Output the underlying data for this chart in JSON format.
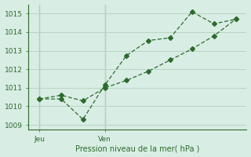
{
  "line1_x": [
    0,
    1,
    2,
    3,
    4,
    5,
    6,
    7,
    8,
    9
  ],
  "line1_y": [
    1010.4,
    1010.4,
    1009.3,
    1011.15,
    1012.75,
    1013.55,
    1013.7,
    1015.1,
    1014.45,
    1014.7
  ],
  "line2_x": [
    0,
    1,
    2,
    3,
    4,
    5,
    6,
    7,
    8,
    9
  ],
  "line2_y": [
    1010.4,
    1010.6,
    1010.3,
    1011.0,
    1011.4,
    1011.9,
    1012.5,
    1013.1,
    1013.8,
    1014.7
  ],
  "line_color": "#2d6a2d",
  "bg_color": "#d8ede4",
  "grid_color": "#b8d4c4",
  "xlabel": "Pression niveau de la mer( hPa )",
  "ylim": [
    1008.75,
    1015.5
  ],
  "xlim": [
    -0.5,
    9.5
  ],
  "yticks": [
    1009,
    1010,
    1011,
    1012,
    1013,
    1014,
    1015
  ],
  "xtick_positions": [
    0,
    3
  ],
  "xtick_labels": [
    "Jeu",
    "Ven"
  ],
  "vline_x": [
    0,
    3
  ],
  "marker": "D",
  "markersize": 3
}
